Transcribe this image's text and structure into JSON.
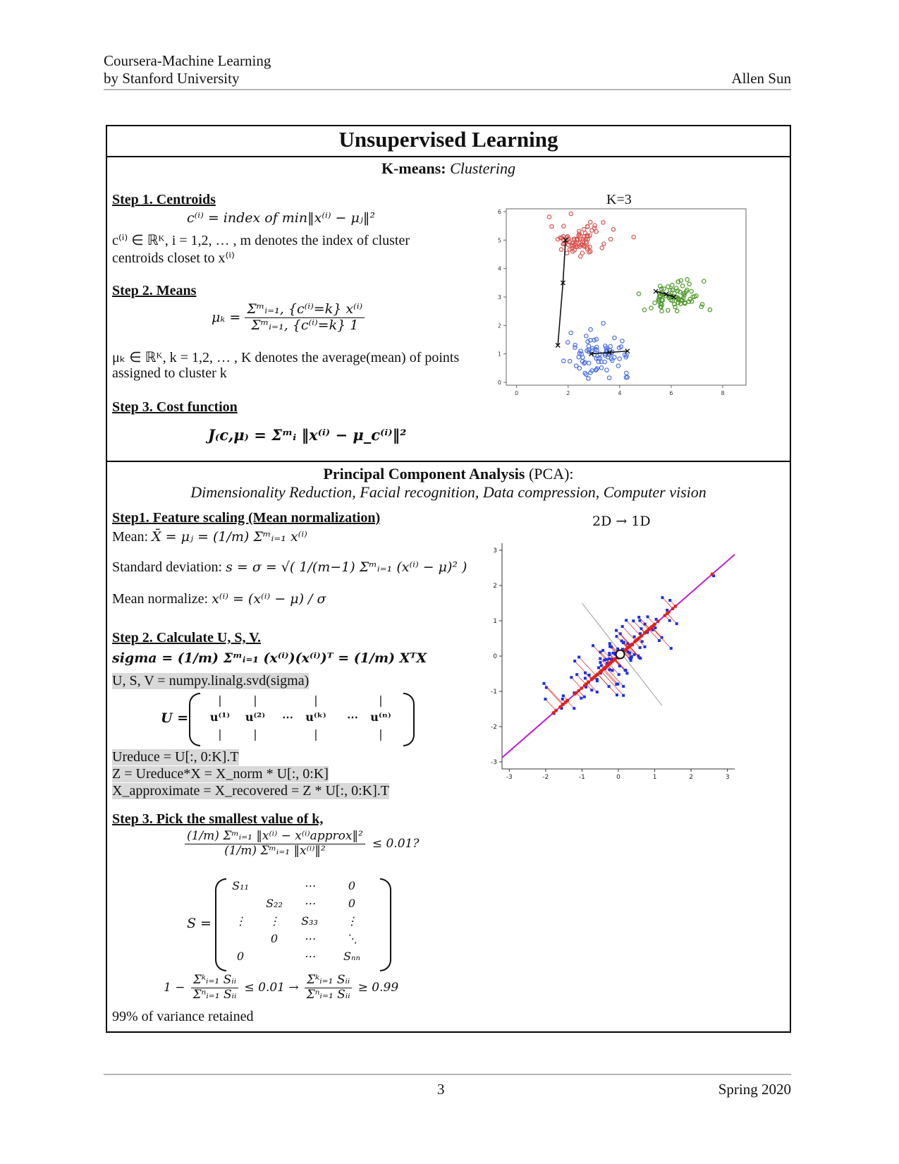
{
  "header": {
    "course_line1": "Coursera-Machine Learning",
    "course_line2": "by Stanford University",
    "author": "Allen Sun"
  },
  "section_main_title": "Unsupervised Learning",
  "kmeans": {
    "title_bold": "K-means:",
    "title_italic": "Clustering",
    "step1": {
      "heading": "Step 1. Centroids",
      "formula": "c⁽ⁱ⁾ = index of min‖x⁽ⁱ⁾ − μⱼ‖²",
      "desc1": "c⁽ⁱ⁾ ∈ ℝᴷ, i = 1,2, … , m denotes the index of cluster",
      "desc2": "centroids closet to x⁽ⁱ⁾"
    },
    "step2": {
      "heading": "Step 2. Means",
      "lhs": "μₖ =",
      "numerator": "Σᵐᵢ₌₁, {c⁽ⁱ⁾=k} x⁽ⁱ⁾",
      "denominator": "Σᵐᵢ₌₁, {c⁽ⁱ⁾=k} 1",
      "desc1": "μₖ ∈ ℝᴷ, k = 1,2, … , K denotes the average(mean) of points",
      "desc2": "assigned to cluster k"
    },
    "step3": {
      "heading": "Step 3. Cost function",
      "formula": "J₍c,μ₎ = Σᵐᵢ ‖x⁽ⁱ⁾ − μ_c⁽ⁱ⁾‖²"
    },
    "chart_title": "K=3"
  },
  "pca": {
    "title_bold": "Principal Component Analysis",
    "title_plain": "(PCA):",
    "subtitle": "Dimensionality Reduction, Facial recognition, Data compression, Computer vision",
    "step1": {
      "heading": "Step1. Feature scaling (Mean normalization)",
      "mean_label": "Mean:",
      "mean_formula": "X̄ = μⱼ = (1/m) Σᵐᵢ₌₁ x⁽ⁱ⁾",
      "sd_label": "Standard deviation:",
      "sd_formula": "s = σ = √( 1/(m−1) Σᵐᵢ₌₁ (x⁽ⁱ⁾ − μ)² )",
      "norm_label": "Mean normalize:",
      "norm_formula": "x⁽ⁱ⁾ = (x⁽ⁱ⁾ − μ) / σ"
    },
    "step2": {
      "heading": "Step 2. Calculate U, S, V.",
      "sigma_formula": "sigma = (1/m) Σᵐᵢ₌₁ (x⁽ⁱ⁾)(x⁽ⁱ⁾)ᵀ = (1/m) XᵀX",
      "svd": "U, S, V = numpy.linalg.svd(sigma)",
      "u_label": "U =",
      "u_cols": [
        "u⁽¹⁾",
        "u⁽²⁾",
        "⋯",
        "u⁽ᵏ⁾",
        "⋯",
        "u⁽ⁿ⁾"
      ],
      "ureduce": "Ureduce = U[:, 0:K].T",
      "z": "Z = Ureduce*X = X_norm * U[:, 0:K]",
      "xapprox": "X_approximate = X_recovered = Z * U[:, 0:K].T"
    },
    "step3": {
      "heading": "Step 3. Pick the smallest value of k,",
      "ratio_num": "(1/m) Σᵐᵢ₌₁ ‖x⁽ⁱ⁾ − x⁽ⁱ⁾approx‖²",
      "ratio_den": "(1/m) Σᵐᵢ₌₁ ‖x⁽ⁱ⁾‖²",
      "ratio_cmp": "≤ 0.01?",
      "s_label": "S =",
      "s_matrix": [
        [
          "S₁₁",
          "",
          "⋯",
          "0"
        ],
        [
          "",
          "S₂₂",
          "⋯",
          "0"
        ],
        [
          "⋮",
          "⋮",
          "S₃₃",
          "⋮"
        ],
        [
          "",
          "0",
          "⋯",
          "⋱"
        ],
        [
          "0",
          "",
          "⋯",
          "Sₙₙ"
        ]
      ],
      "ineq_left": "1 −",
      "ineq_frac_num": "Σᵏᵢ₌₁ Sᵢᵢ",
      "ineq_frac_den": "Σⁿᵢ₌₁ Sᵢᵢ",
      "ineq_mid": "≤ 0.01  →",
      "ineq_right": "≥ 0.99",
      "variance": "99% of variance retained"
    },
    "chart_title": "2D → 1D"
  },
  "footer": {
    "page": "3",
    "term": "Spring 2020"
  },
  "chart_data": [
    {
      "type": "scatter",
      "title": "K=3",
      "xlim": [
        -0.4,
        8.9
      ],
      "ylim": [
        -0.1,
        6.1
      ],
      "xticks": [
        0,
        2,
        4,
        6,
        8
      ],
      "yticks": [
        0,
        1,
        2,
        3,
        4,
        5,
        6
      ],
      "series": [
        {
          "color": "#d9534f",
          "center": [
            2.4,
            5.0
          ],
          "spread": [
            1.0,
            0.28
          ],
          "count": 80
        },
        {
          "color": "#4e9a2a",
          "center": [
            6.1,
            3.0
          ],
          "spread": [
            1.1,
            0.3
          ],
          "count": 80
        },
        {
          "color": "#4a6fe3",
          "center": [
            3.2,
            1.0
          ],
          "spread": [
            1.1,
            0.35
          ],
          "count": 80
        }
      ],
      "centroid_paths": [
        [
          [
            1.9,
            5.0
          ],
          [
            1.8,
            3.5
          ],
          [
            1.6,
            1.3
          ]
        ],
        [
          [
            5.4,
            3.2
          ],
          [
            5.8,
            3.1
          ],
          [
            6.1,
            3.0
          ]
        ],
        [
          [
            2.9,
            1.0
          ],
          [
            3.6,
            1.05
          ],
          [
            4.3,
            1.1
          ]
        ]
      ]
    },
    {
      "type": "scatter",
      "title": "2D → 1D",
      "xlim": [
        -3.2,
        3.2
      ],
      "ylim": [
        -3.2,
        3.2
      ],
      "xticks": [
        -3,
        -2,
        -1,
        0,
        1,
        2,
        3
      ],
      "yticks": [
        -3,
        -2,
        -1,
        0,
        1,
        2,
        3
      ],
      "principal_axis_slope": 0.9,
      "series": [
        {
          "name": "",
          "color": "#1a2ff0",
          "count": 110
        },
        {
          "name": "",
          "color": "#e0201a",
          "count": 110
        }
      ]
    }
  ]
}
